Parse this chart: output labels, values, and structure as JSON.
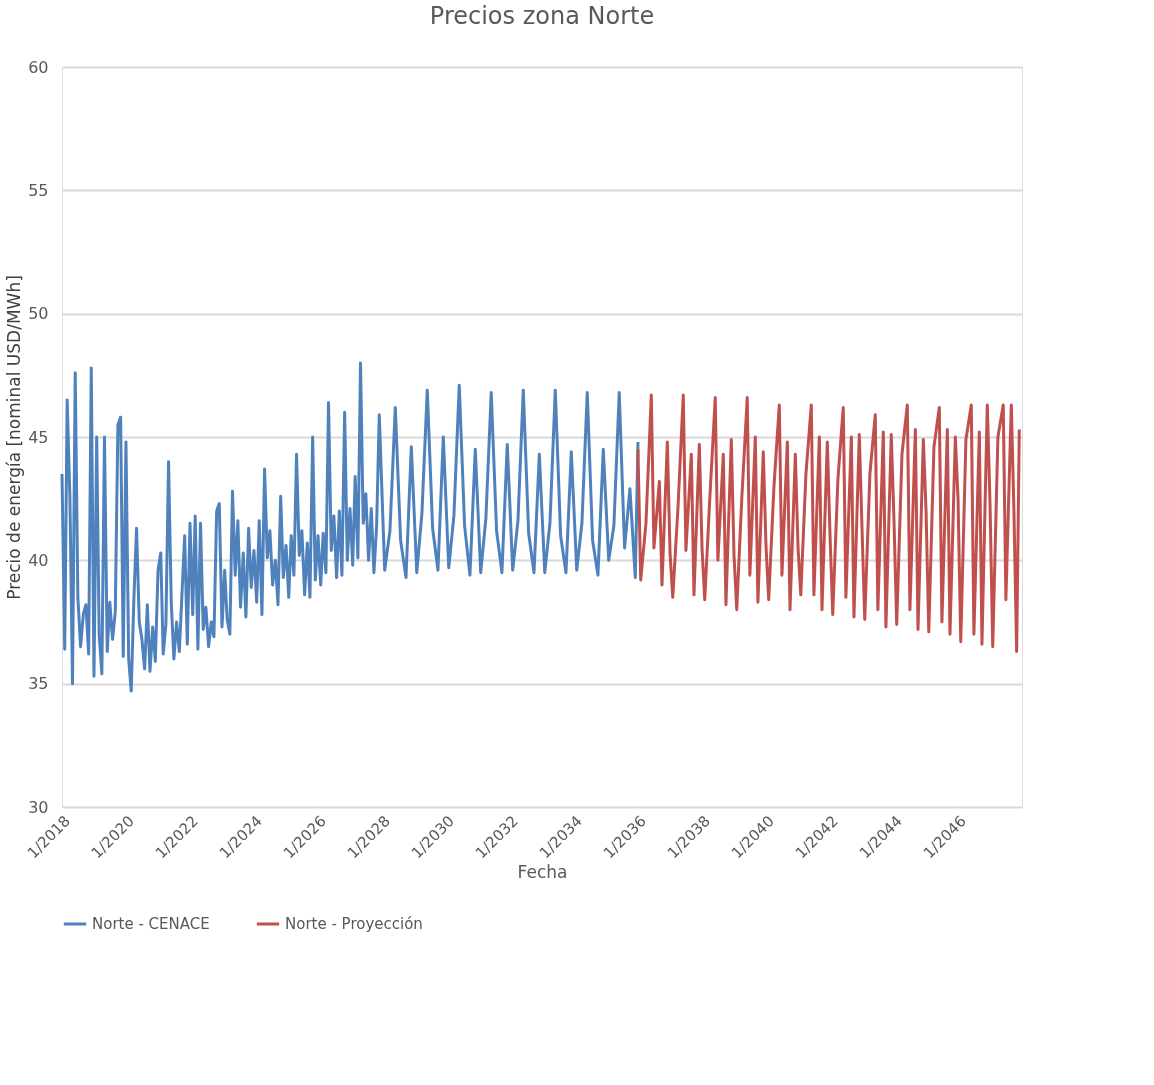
{
  "chart_data": {
    "type": "line",
    "title": "Precios zona Norte",
    "xlabel": "Fecha",
    "ylabel": "Precio de energía [nominal USD/MWh]",
    "xlim": [
      "2018-01",
      "2048-01"
    ],
    "xticks": [
      {
        "value": "2018-01",
        "label": "1/2018"
      },
      {
        "value": "2020-01",
        "label": "1/2020"
      },
      {
        "value": "2022-01",
        "label": "1/2022"
      },
      {
        "value": "2024-01",
        "label": "1/2024"
      },
      {
        "value": "2026-01",
        "label": "1/2026"
      },
      {
        "value": "2028-01",
        "label": "1/2028"
      },
      {
        "value": "2030-01",
        "label": "1/2030"
      },
      {
        "value": "2032-01",
        "label": "1/2032"
      },
      {
        "value": "2034-01",
        "label": "1/2034"
      },
      {
        "value": "2036-01",
        "label": "1/2036"
      },
      {
        "value": "2038-01",
        "label": "1/2038"
      },
      {
        "value": "2040-01",
        "label": "1/2040"
      },
      {
        "value": "2042-01",
        "label": "1/2042"
      },
      {
        "value": "2044-01",
        "label": "1/2044"
      },
      {
        "value": "2046-01",
        "label": "1/2046"
      }
    ],
    "ylim": [
      30,
      60
    ],
    "yticks": [
      30,
      35,
      40,
      45,
      50,
      55,
      60
    ],
    "grid": "y",
    "legend": "bottom",
    "line_style": "solid",
    "series": [
      {
        "name": "Norte - CENACE",
        "color": "#4f81bd",
        "x": [
          "2018-01",
          "2018-02",
          "2018-03",
          "2018-04",
          "2018-05",
          "2018-06",
          "2018-07",
          "2018-08",
          "2018-09",
          "2018-10",
          "2018-11",
          "2018-12",
          "2019-01",
          "2019-02",
          "2019-03",
          "2019-04",
          "2019-05",
          "2019-06",
          "2019-07",
          "2019-08",
          "2019-09",
          "2019-10",
          "2019-11",
          "2019-12",
          "2020-01",
          "2020-02",
          "2020-03",
          "2020-04",
          "2020-05",
          "2020-06",
          "2020-07",
          "2020-08",
          "2020-09",
          "2020-10",
          "2020-11",
          "2020-12",
          "2021-01",
          "2021-02",
          "2021-03",
          "2021-04",
          "2021-05",
          "2021-06",
          "2021-07",
          "2021-08",
          "2021-09",
          "2021-10",
          "2021-11",
          "2021-12",
          "2022-01",
          "2022-02",
          "2022-03",
          "2022-04",
          "2022-05",
          "2022-06",
          "2022-07",
          "2022-08",
          "2022-09",
          "2022-10",
          "2022-11",
          "2022-12",
          "2023-01",
          "2023-02",
          "2023-03",
          "2023-04",
          "2023-05",
          "2023-06",
          "2023-07",
          "2023-08",
          "2023-09",
          "2023-10",
          "2023-11",
          "2023-12",
          "2024-01",
          "2024-02",
          "2024-03",
          "2024-04",
          "2024-05",
          "2024-06",
          "2024-07",
          "2024-08",
          "2024-09",
          "2024-10",
          "2024-11",
          "2024-12",
          "2025-01",
          "2025-02",
          "2025-03",
          "2025-04",
          "2025-05",
          "2025-06",
          "2025-07",
          "2025-08",
          "2025-09",
          "2025-10",
          "2025-11",
          "2025-12",
          "2026-01",
          "2026-02",
          "2026-03",
          "2026-04",
          "2026-05",
          "2026-06",
          "2026-07",
          "2026-08",
          "2026-09",
          "2026-10",
          "2026-11",
          "2026-12",
          "2027-01",
          "2027-02",
          "2027-03",
          "2027-04",
          "2027-05",
          "2027-06",
          "2027-07",
          "2027-08",
          "2027-09",
          "2027-10",
          "2027-11",
          "2027-12",
          "2028-02",
          "2028-04",
          "2028-06",
          "2028-08",
          "2028-10",
          "2028-12",
          "2029-02",
          "2029-04",
          "2029-06",
          "2029-08",
          "2029-10",
          "2029-12",
          "2030-02",
          "2030-04",
          "2030-06",
          "2030-08",
          "2030-10",
          "2030-12",
          "2031-02",
          "2031-04",
          "2031-06",
          "2031-08",
          "2031-10",
          "2031-12",
          "2032-02",
          "2032-04",
          "2032-06",
          "2032-08",
          "2032-10",
          "2032-12",
          "2033-02",
          "2033-04",
          "2033-06",
          "2033-08",
          "2033-10",
          "2033-12",
          "2034-02",
          "2034-04",
          "2034-06",
          "2034-08",
          "2034-10",
          "2034-12",
          "2035-02",
          "2035-04",
          "2035-06",
          "2035-08",
          "2035-10",
          "2035-12",
          "2036-01"
        ],
        "values": [
          43.5,
          36.4,
          46.5,
          42.6,
          35.0,
          47.6,
          38.5,
          36.5,
          37.8,
          38.2,
          36.2,
          47.8,
          35.3,
          45.0,
          37.0,
          35.4,
          45.0,
          36.3,
          38.3,
          36.8,
          37.9,
          45.5,
          45.8,
          36.1,
          44.8,
          36.0,
          34.7,
          38.5,
          41.3,
          37.5,
          36.8,
          35.6,
          38.2,
          35.5,
          37.3,
          35.9,
          39.6,
          40.3,
          36.2,
          37.4,
          44.0,
          38.3,
          36.0,
          37.5,
          36.3,
          38.6,
          41.0,
          36.6,
          41.5,
          37.8,
          41.8,
          36.4,
          41.5,
          37.2,
          38.1,
          36.5,
          37.5,
          36.9,
          42.0,
          42.3,
          37.3,
          39.6,
          37.6,
          37.0,
          42.8,
          39.4,
          41.6,
          38.1,
          40.3,
          37.7,
          41.3,
          38.9,
          40.4,
          38.3,
          41.6,
          37.8,
          43.7,
          40.1,
          41.2,
          39.0,
          40.0,
          38.2,
          42.6,
          39.3,
          40.6,
          38.5,
          41.0,
          39.4,
          44.3,
          40.2,
          41.2,
          38.6,
          40.7,
          38.5,
          45.0,
          39.2,
          41.0,
          39.0,
          41.1,
          39.5,
          46.4,
          40.4,
          41.8,
          39.3,
          42.0,
          39.4,
          46.0,
          40.0,
          42.1,
          39.8,
          43.4,
          40.1,
          48.0,
          41.5,
          42.7,
          40.0,
          42.1,
          39.5,
          41.4,
          45.9,
          39.6,
          41.2,
          46.2,
          40.8,
          39.3,
          44.6,
          39.5,
          41.9,
          46.9,
          41.3,
          39.6,
          45.0,
          39.7,
          41.8,
          47.1,
          41.4,
          39.4,
          44.5,
          39.5,
          41.7,
          46.8,
          41.2,
          39.5,
          44.7,
          39.6,
          41.6,
          46.9,
          41.1,
          39.5,
          44.3,
          39.5,
          41.5,
          46.9,
          41.0,
          39.5,
          44.4,
          39.6,
          41.5,
          46.8,
          40.8,
          39.4,
          44.5,
          40.0,
          41.4,
          46.8,
          40.5,
          42.9,
          39.3,
          44.8
        ]
      },
      {
        "name": "Norte - Proyección",
        "color": "#c0504d",
        "x": [
          "2036-01",
          "2036-02",
          "2036-04",
          "2036-06",
          "2036-07",
          "2036-09",
          "2036-10",
          "2036-12",
          "2037-01",
          "2037-02",
          "2037-04",
          "2037-06",
          "2037-07",
          "2037-09",
          "2037-10",
          "2037-12",
          "2038-01",
          "2038-02",
          "2038-04",
          "2038-06",
          "2038-07",
          "2038-09",
          "2038-10",
          "2038-12",
          "2039-01",
          "2039-02",
          "2039-04",
          "2039-06",
          "2039-07",
          "2039-09",
          "2039-10",
          "2039-12",
          "2040-01",
          "2040-02",
          "2040-04",
          "2040-06",
          "2040-07",
          "2040-09",
          "2040-10",
          "2040-12",
          "2041-01",
          "2041-02",
          "2041-04",
          "2041-06",
          "2041-07",
          "2041-09",
          "2041-10",
          "2041-12",
          "2042-01",
          "2042-02",
          "2042-04",
          "2042-06",
          "2042-07",
          "2042-09",
          "2042-10",
          "2042-12",
          "2043-01",
          "2043-02",
          "2043-04",
          "2043-06",
          "2043-07",
          "2043-09",
          "2043-10",
          "2043-12",
          "2044-01",
          "2044-02",
          "2044-04",
          "2044-06",
          "2044-07",
          "2044-09",
          "2044-10",
          "2044-12",
          "2045-01",
          "2045-02",
          "2045-04",
          "2045-06",
          "2045-07",
          "2045-09",
          "2045-10",
          "2045-12",
          "2046-01",
          "2046-02",
          "2046-04",
          "2046-06",
          "2046-07",
          "2046-09",
          "2046-10",
          "2046-12",
          "2047-01",
          "2047-02",
          "2047-04",
          "2047-06",
          "2047-07",
          "2047-09",
          "2047-10",
          "2047-11",
          "2047-12"
        ],
        "values": [
          44.5,
          39.2,
          41.5,
          46.7,
          40.5,
          43.2,
          39.0,
          44.8,
          40.3,
          38.5,
          42.1,
          46.7,
          40.4,
          44.3,
          38.6,
          44.7,
          40.5,
          38.4,
          42.6,
          46.6,
          40.0,
          44.3,
          38.2,
          44.9,
          40.2,
          38.0,
          42.6,
          46.6,
          39.4,
          45.0,
          38.3,
          44.4,
          40.6,
          38.4,
          43.0,
          46.3,
          39.4,
          44.8,
          38.0,
          44.3,
          40.5,
          38.6,
          43.5,
          46.3,
          38.6,
          45.0,
          38.0,
          44.8,
          41.0,
          37.8,
          43.3,
          46.2,
          38.5,
          45.0,
          37.7,
          45.1,
          41.3,
          37.6,
          43.5,
          45.9,
          38.0,
          45.2,
          37.3,
          45.1,
          41.6,
          37.4,
          44.3,
          46.3,
          38.0,
          45.3,
          37.2,
          44.9,
          42.0,
          37.1,
          44.6,
          46.2,
          37.5,
          45.3,
          37.0,
          45.0,
          42.5,
          36.7,
          44.9,
          46.3,
          37.0,
          45.2,
          36.6,
          46.3,
          42.3,
          36.5,
          45.0,
          46.3,
          38.4,
          46.3,
          42.0,
          36.3,
          45.3
        ]
      }
    ]
  }
}
